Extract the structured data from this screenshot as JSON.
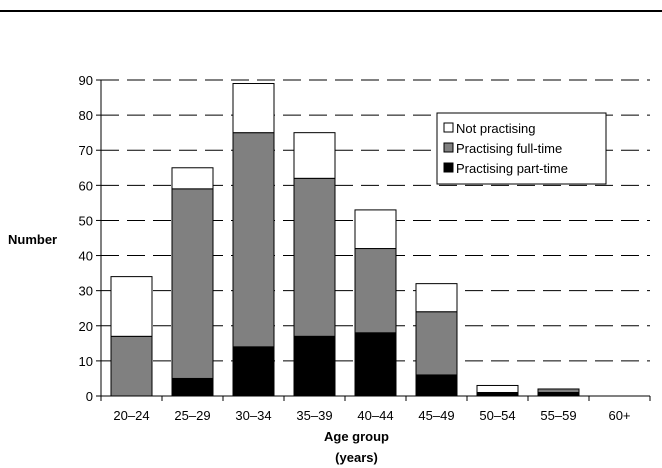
{
  "chart_data": {
    "type": "bar",
    "stacked": true,
    "categories": [
      "20–24",
      "25–29",
      "30–34",
      "35–39",
      "40–44",
      "45–49",
      "50–54",
      "55–59",
      "60+"
    ],
    "series": [
      {
        "name": "Practising part-time",
        "color": "#000000",
        "values": [
          0,
          5,
          14,
          17,
          18,
          6,
          1,
          1,
          0
        ]
      },
      {
        "name": "Practising full-time",
        "color": "#808080",
        "values": [
          17,
          54,
          61,
          45,
          24,
          18,
          0,
          1,
          0
        ]
      },
      {
        "name": "Not practising",
        "color": "#ffffff",
        "values": [
          17,
          6,
          14,
          13,
          11,
          8,
          2,
          0,
          0
        ]
      }
    ],
    "legend_order": [
      "Not practising",
      "Practising full-time",
      "Practising part-time"
    ],
    "legend_position": "top-right",
    "ylabel": "Number",
    "xlabel_lines": [
      "Age group",
      "(years)"
    ],
    "ylim": [
      0,
      90
    ],
    "yticks": [
      0,
      10,
      20,
      30,
      40,
      50,
      60,
      70,
      80,
      90
    ],
    "gridlines": "dashed-horizontal"
  }
}
